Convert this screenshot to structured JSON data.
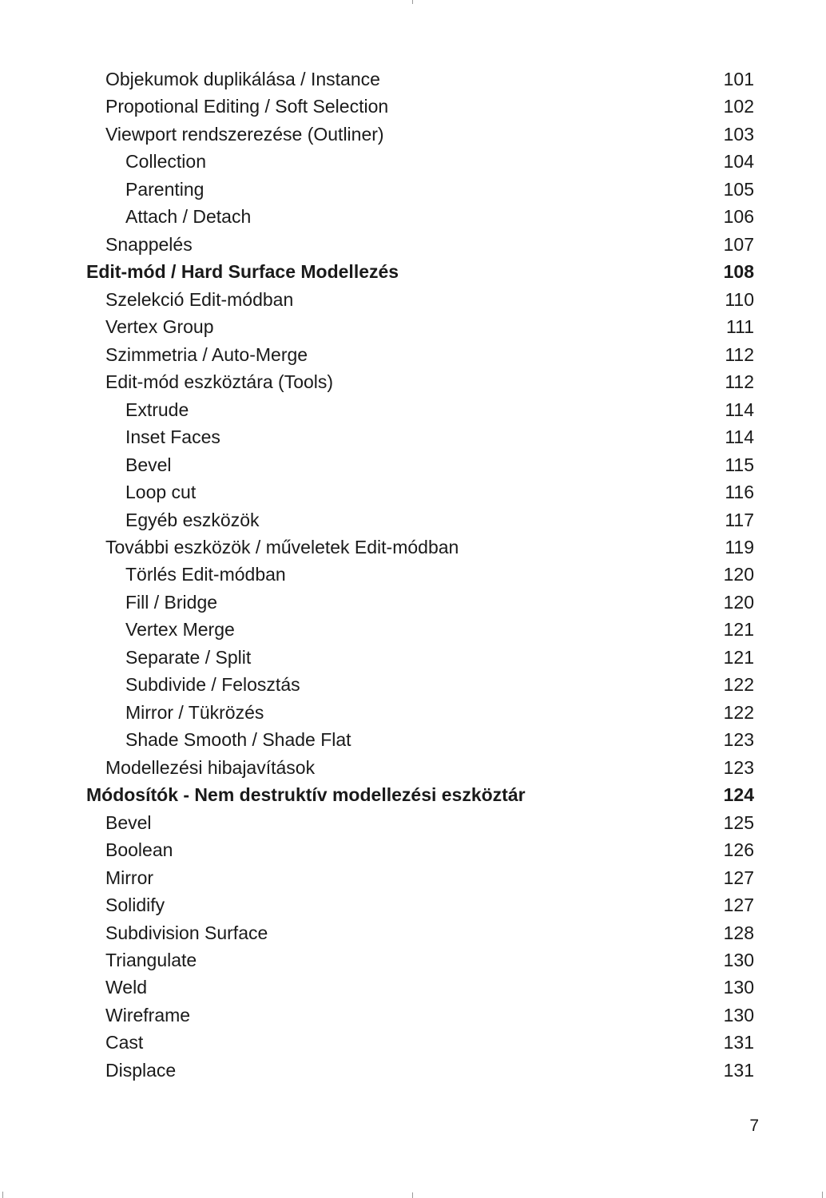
{
  "toc": [
    {
      "level": 1,
      "title": "Objekumok duplikálása / Instance",
      "page": "101"
    },
    {
      "level": 1,
      "title": "Propotional Editing / Soft Selection",
      "page": "102"
    },
    {
      "level": 1,
      "title": "Viewport rendszerezése (Outliner)",
      "page": "103"
    },
    {
      "level": 2,
      "title": "Collection",
      "page": "104"
    },
    {
      "level": 2,
      "title": "Parenting",
      "page": "105"
    },
    {
      "level": 2,
      "title": "Attach / Detach",
      "page": "106"
    },
    {
      "level": 1,
      "title": "Snappelés",
      "page": "107"
    },
    {
      "level": 0,
      "title": "Edit-mód / Hard Surface Modellezés",
      "page": "108"
    },
    {
      "level": 1,
      "title": "Szelekció Edit-módban",
      "page": "110"
    },
    {
      "level": 1,
      "title": "Vertex Group",
      "page": "111"
    },
    {
      "level": 1,
      "title": "Szimmetria / Auto-Merge",
      "page": "112"
    },
    {
      "level": 1,
      "title": "Edit-mód eszköztára (Tools)",
      "page": "112"
    },
    {
      "level": 2,
      "title": "Extrude",
      "page": "114"
    },
    {
      "level": 2,
      "title": "Inset Faces",
      "page": "114"
    },
    {
      "level": 2,
      "title": "Bevel",
      "page": "115"
    },
    {
      "level": 2,
      "title": "Loop cut",
      "page": "116"
    },
    {
      "level": 2,
      "title": "Egyéb eszközök",
      "page": "117"
    },
    {
      "level": 1,
      "title": "További eszközök / műveletek Edit-módban",
      "page": "119"
    },
    {
      "level": 2,
      "title": "Törlés Edit-módban",
      "page": "120"
    },
    {
      "level": 2,
      "title": "Fill / Bridge",
      "page": "120"
    },
    {
      "level": 2,
      "title": "Vertex Merge",
      "page": "121"
    },
    {
      "level": 2,
      "title": "Separate / Split",
      "page": "121"
    },
    {
      "level": 2,
      "title": "Subdivide / Felosztás",
      "page": "122"
    },
    {
      "level": 2,
      "title": "Mirror / Tükrözés",
      "page": "122"
    },
    {
      "level": 2,
      "title": "Shade Smooth / Shade Flat",
      "page": "123"
    },
    {
      "level": 1,
      "title": "Modellezési hibajavítások",
      "page": "123"
    },
    {
      "level": 0,
      "title": "Módosítók - Nem destruktív modellezési eszköztár",
      "page": "124"
    },
    {
      "level": 1,
      "title": "Bevel",
      "page": "125"
    },
    {
      "level": 1,
      "title": "Boolean",
      "page": "126"
    },
    {
      "level": 1,
      "title": "Mirror",
      "page": "127"
    },
    {
      "level": 1,
      "title": "Solidify",
      "page": "127"
    },
    {
      "level": 1,
      "title": "Subdivision Surface",
      "page": "128"
    },
    {
      "level": 1,
      "title": "Triangulate",
      "page": "130"
    },
    {
      "level": 1,
      "title": "Weld",
      "page": "130"
    },
    {
      "level": 1,
      "title": "Wireframe",
      "page": "130"
    },
    {
      "level": 1,
      "title": "Cast",
      "page": "131"
    },
    {
      "level": 1,
      "title": "Displace",
      "page": "131"
    }
  ],
  "page_number": "7"
}
